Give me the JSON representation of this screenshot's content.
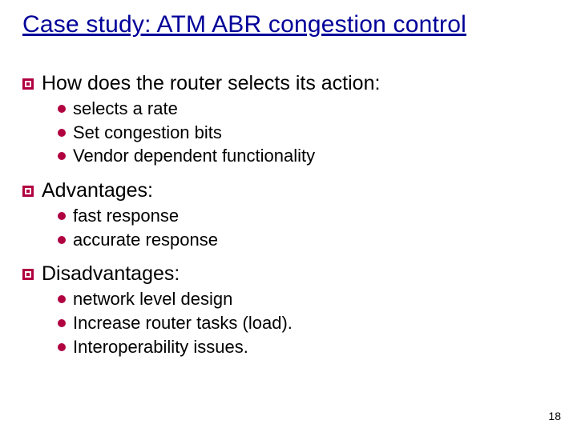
{
  "colors": {
    "title": "#000099",
    "bullet": "#b00040",
    "text": "#000000",
    "background": "#ffffff"
  },
  "fonts": {
    "body_family": "Comic Sans MS",
    "title_size_pt": 30,
    "l1_size_pt": 25,
    "l2_size_pt": 22,
    "pagenum_family": "Arial",
    "pagenum_size_pt": 14
  },
  "title": "Case study: ATM ABR congestion control",
  "sections": [
    {
      "heading": "How does the router selects its action:",
      "items": [
        " selects a rate",
        "Set congestion bits",
        "Vendor dependent functionality"
      ]
    },
    {
      "heading": "Advantages:",
      "items": [
        "fast response",
        "accurate response"
      ]
    },
    {
      "heading": "Disadvantages:",
      "items": [
        "network level design",
        "Increase router tasks (load).",
        "Interoperability issues."
      ]
    }
  ],
  "page_number": "18"
}
